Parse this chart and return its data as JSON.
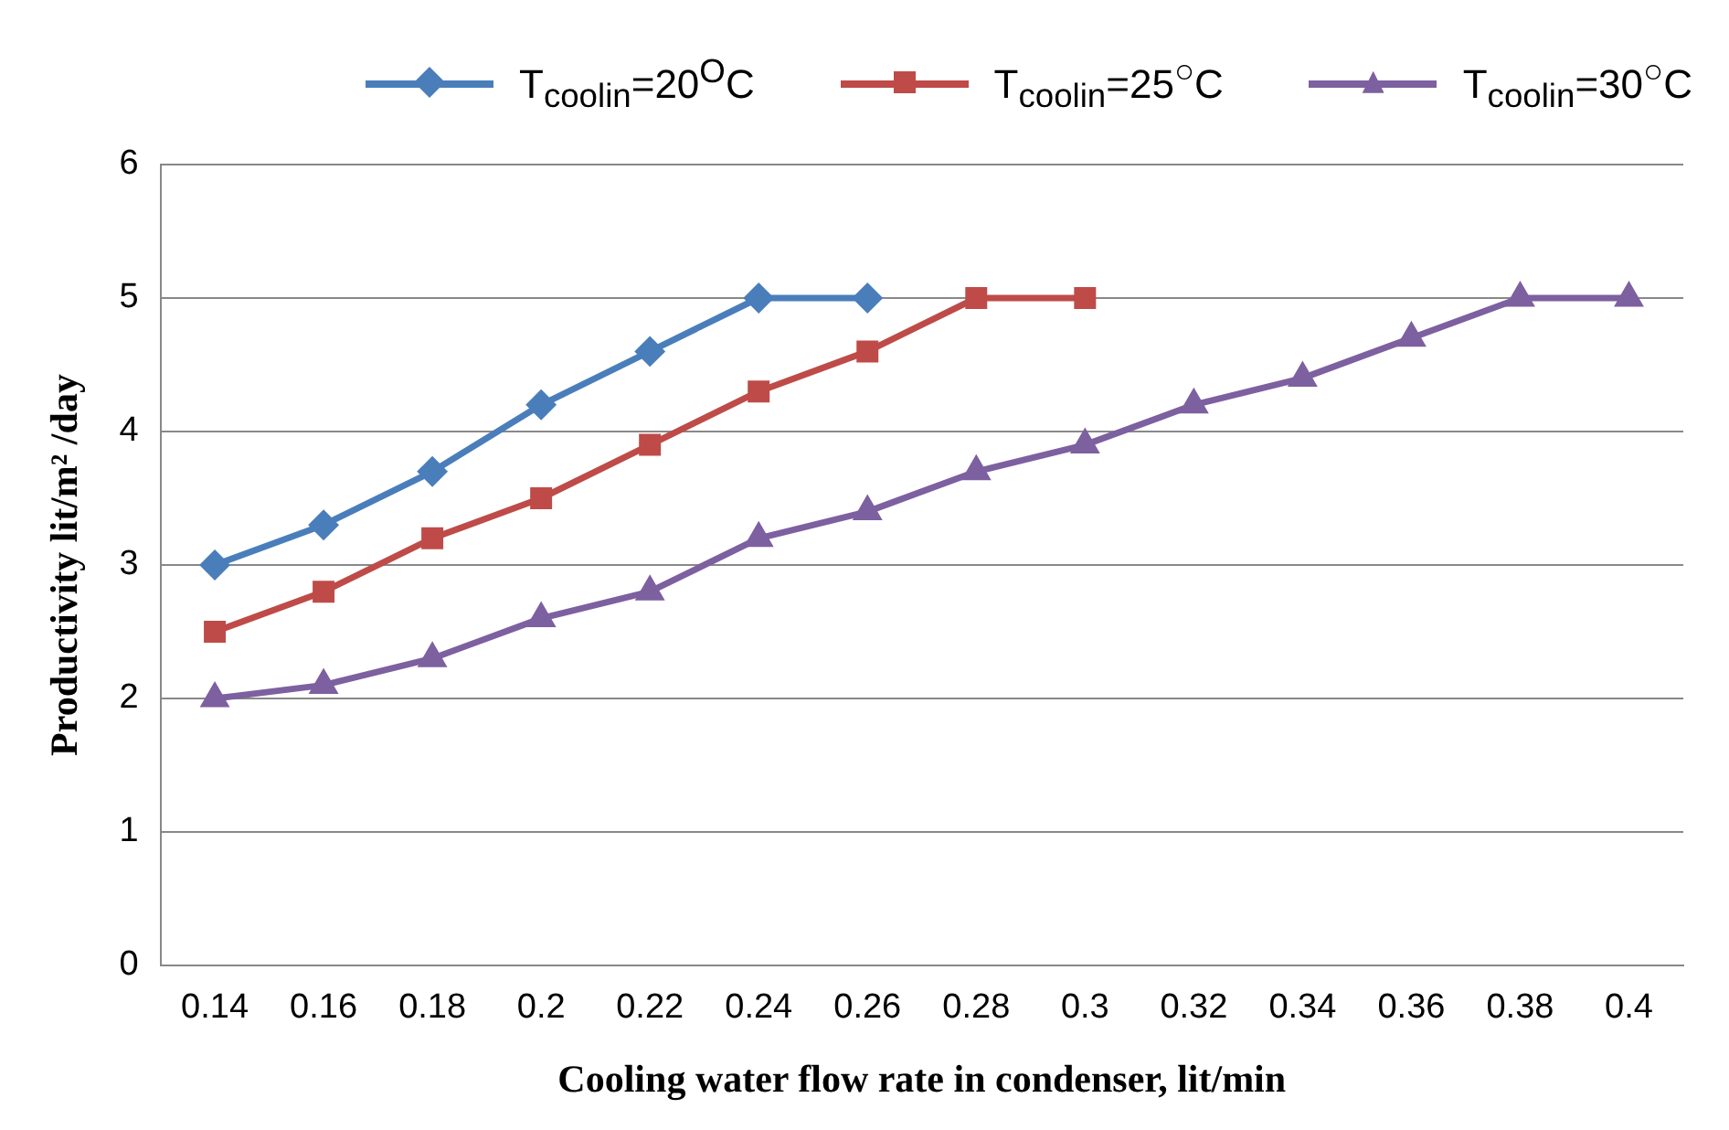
{
  "chart_data": {
    "type": "line",
    "xlabel": "Cooling water flow rate in condenser, lit/min",
    "ylabel": "Productivity lit/m² /day",
    "categories": [
      "0.14",
      "0.16",
      "0.18",
      "0.2",
      "0.22",
      "0.24",
      "0.26",
      "0.28",
      "0.3",
      "0.32",
      "0.34",
      "0.36",
      "0.38",
      "0.4"
    ],
    "series": [
      {
        "name": "T$_{coolin}$=20$^{O}$C",
        "color": "#4a7ebb",
        "marker": "diamond",
        "values": [
          3,
          3.3,
          3.7,
          4.2,
          4.6,
          5,
          5,
          null,
          null,
          null,
          null,
          null,
          null,
          null
        ]
      },
      {
        "name": "T$_{coolin}$=25$^{○}$C",
        "color": "#be4b48",
        "marker": "square",
        "values": [
          2.5,
          2.8,
          3.2,
          3.5,
          3.9,
          4.3,
          4.6,
          5,
          5,
          null,
          null,
          null,
          null,
          null
        ]
      },
      {
        "name": "T$_{coolin}$=30$^{○}$C",
        "color": "#7d60a0",
        "marker": "triangle",
        "values": [
          2,
          2.1,
          2.3,
          2.6,
          2.8,
          3.2,
          3.4,
          3.7,
          3.9,
          4.2,
          4.4,
          4.7,
          5,
          5
        ]
      }
    ],
    "ylim": [
      0,
      6
    ],
    "yticks": [
      0,
      1,
      2,
      3,
      4,
      5,
      6
    ],
    "grid": "y",
    "legend": "top right",
    "line_style": "solid"
  }
}
